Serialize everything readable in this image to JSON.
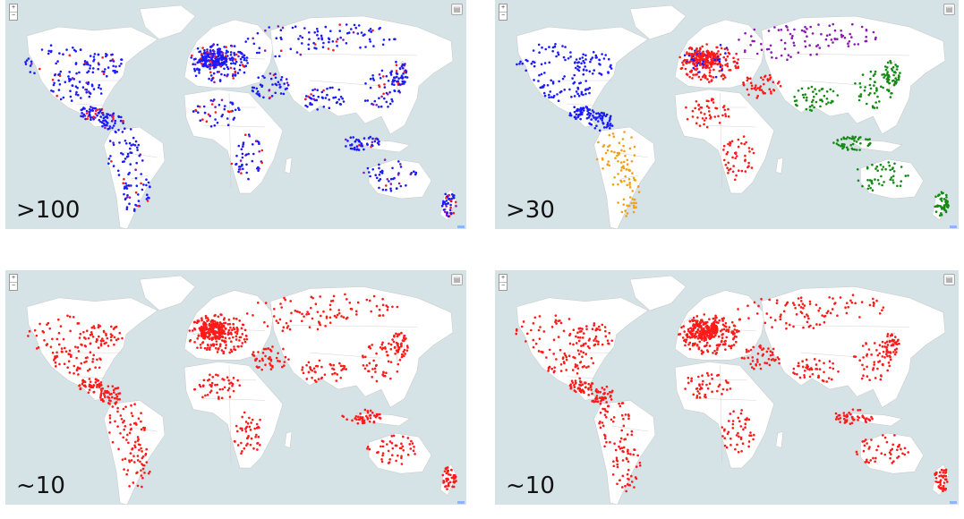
{
  "panels": [
    {
      "id": "p1",
      "threshold": ">100",
      "zoom_in": "+",
      "zoom_out": "−",
      "layers_icon": "layers-icon",
      "scheme": "blue-red"
    },
    {
      "id": "p2",
      "threshold": ">30",
      "zoom_in": "+",
      "zoom_out": "−",
      "layers_icon": "layers-icon",
      "scheme": "regional"
    },
    {
      "id": "p3",
      "threshold": "~10",
      "zoom_in": "+",
      "zoom_out": "−",
      "layers_icon": "layers-icon",
      "scheme": "red"
    },
    {
      "id": "p4",
      "threshold": "~10",
      "zoom_in": "+",
      "zoom_out": "−",
      "layers_icon": "layers-icon",
      "scheme": "red"
    }
  ],
  "colors": {
    "ocean": "#d6e3e6",
    "land": "#ffffff",
    "border": "#c7c7c7",
    "blue": "#1a1aff",
    "red": "#ff1a1a",
    "purple": "#8a1ab0",
    "green": "#148a14",
    "orange": "#f0a01a"
  }
}
